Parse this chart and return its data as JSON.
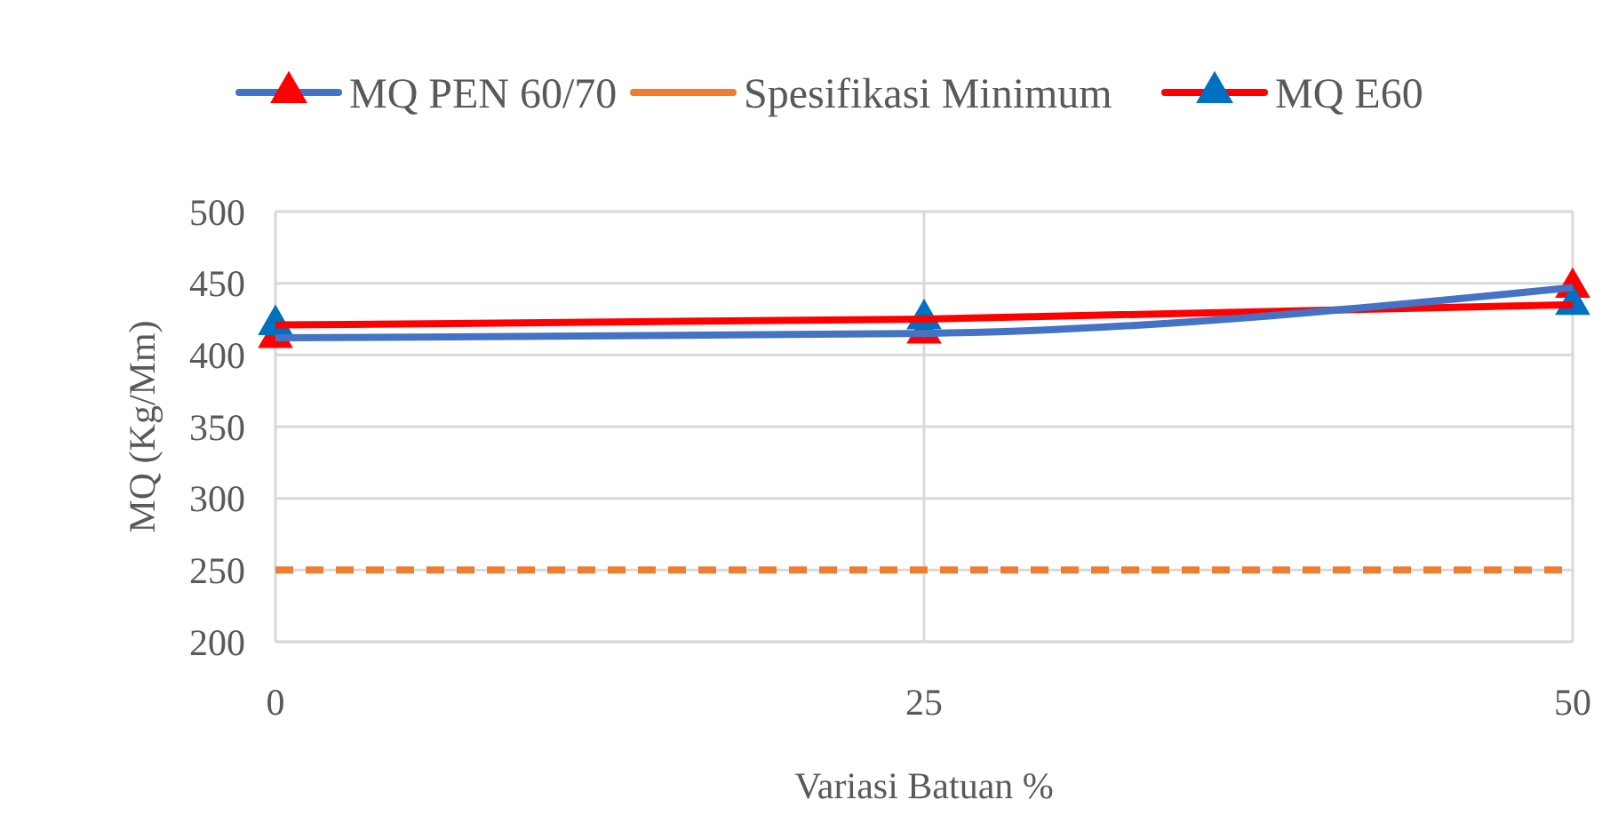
{
  "chart_data": {
    "type": "line",
    "xlabel": "Variasi Batuan %",
    "ylabel": "MQ (Kg/Mm)",
    "x": [
      0,
      25,
      50
    ],
    "xlim": [
      0,
      50
    ],
    "xticks": [
      0,
      25,
      50
    ],
    "ylim": [
      200,
      500
    ],
    "yticks": [
      200,
      250,
      300,
      350,
      400,
      450,
      500
    ],
    "grid": true,
    "legend": "top",
    "series": [
      {
        "name": "MQ PEN 60/70",
        "color": "#4472c4",
        "colors": [
          "#ff0000",
          "#ff0000",
          "#ff0000"
        ],
        "values": [
          412,
          415,
          447
        ],
        "marker": "triangle",
        "line_style": "solid"
      },
      {
        "name": "Spesifikasi Minimum",
        "color": "#ed7d31",
        "values": [
          250,
          250,
          250
        ],
        "marker": "none",
        "line_style": "dashed"
      },
      {
        "name": "MQ E60",
        "color": "#ff0000",
        "colors": [
          "#0070c0",
          "#0070c0",
          "#0070c0"
        ],
        "values": [
          421,
          425,
          435
        ],
        "marker": "triangle",
        "line_style": "solid"
      }
    ]
  }
}
